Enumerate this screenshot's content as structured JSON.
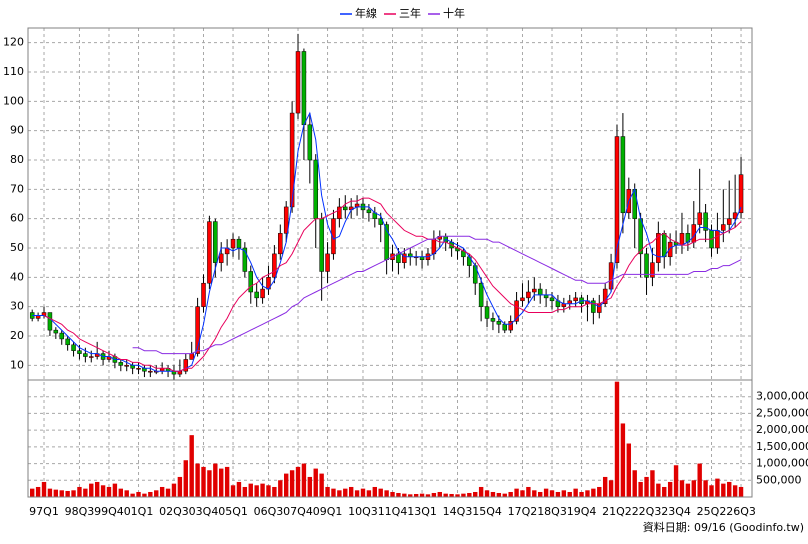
{
  "chart_data": [
    {
      "type": "candlestick",
      "categories": [
        null,
        null,
        "97Q1",
        null,
        null,
        null,
        null,
        null,
        "98Q3",
        null,
        null,
        null,
        null,
        "99Q4",
        null,
        null,
        null,
        null,
        "01Q1",
        null,
        null,
        null,
        null,
        null,
        "02Q3",
        null,
        null,
        null,
        null,
        "03Q4",
        null,
        null,
        null,
        null,
        "05Q1",
        null,
        null,
        null,
        null,
        null,
        "06Q3",
        null,
        null,
        null,
        null,
        "07Q4",
        null,
        null,
        null,
        null,
        "09Q1",
        null,
        null,
        null,
        null,
        null,
        "10Q3",
        null,
        null,
        null,
        null,
        "11Q4",
        null,
        null,
        null,
        null,
        "13Q1",
        null,
        null,
        null,
        null,
        null,
        "14Q3",
        null,
        null,
        null,
        null,
        "15Q4",
        null,
        null,
        null,
        null,
        null,
        "17Q2",
        null,
        null,
        null,
        null,
        "18Q3",
        null,
        null,
        null,
        null,
        "19Q4",
        null,
        null,
        null,
        null,
        null,
        "21Q2",
        null,
        null,
        null,
        null,
        "22Q3",
        null,
        null,
        null,
        null,
        "23Q4",
        null,
        null,
        null,
        null,
        null,
        "25Q2",
        null,
        null,
        null,
        null,
        "26Q3"
      ],
      "open": [
        28,
        26,
        27,
        28,
        22,
        21,
        19,
        17,
        15,
        14,
        13,
        13,
        14,
        12,
        13,
        11,
        10,
        10,
        9,
        9,
        8,
        8,
        8,
        9,
        8,
        7,
        8,
        12,
        14,
        30,
        38,
        59,
        45,
        48,
        50,
        53,
        50,
        42,
        35,
        33,
        36,
        40,
        48,
        55,
        64,
        96,
        117,
        92,
        80,
        60,
        42,
        48,
        60,
        64,
        63,
        64,
        65,
        63,
        62,
        60,
        58,
        46,
        48,
        45,
        48,
        47,
        47,
        46,
        48,
        53,
        54,
        52,
        50,
        49,
        47,
        44,
        38,
        30,
        26,
        25,
        24,
        22,
        25,
        32,
        33,
        35,
        36,
        34,
        33,
        32,
        30,
        31,
        32,
        33,
        31,
        32,
        28,
        31,
        36,
        45,
        88,
        62,
        70,
        60,
        48,
        40,
        45,
        55,
        47,
        52,
        51,
        55,
        52,
        58,
        62,
        56,
        50,
        56,
        58,
        60,
        62
      ],
      "high": [
        29,
        28,
        30,
        28,
        23,
        22,
        20,
        18,
        17,
        16,
        15,
        18,
        15,
        15,
        14,
        12,
        12,
        11,
        11,
        10,
        10,
        10,
        11,
        10,
        10,
        12,
        14,
        18,
        33,
        41,
        61,
        60,
        52,
        53,
        55,
        54,
        52,
        44,
        38,
        40,
        44,
        51,
        58,
        66,
        100,
        123,
        118,
        96,
        82,
        62,
        52,
        63,
        67,
        68,
        67,
        68,
        67,
        65,
        64,
        62,
        59,
        51,
        50,
        50,
        50,
        49,
        49,
        50,
        56,
        56,
        55,
        53,
        52,
        50,
        48,
        45,
        40,
        32,
        28,
        27,
        25,
        27,
        35,
        38,
        39,
        40,
        38,
        36,
        35,
        34,
        33,
        34,
        35,
        34,
        34,
        33,
        34,
        38,
        48,
        92,
        96,
        74,
        72,
        62,
        50,
        50,
        59,
        56,
        55,
        56,
        62,
        58,
        66,
        77,
        65,
        58,
        62,
        70,
        73,
        75,
        81
      ],
      "low": [
        25,
        25,
        26,
        20,
        19,
        17,
        15,
        13,
        12,
        11,
        11,
        12,
        10,
        11,
        9,
        8,
        8,
        7,
        7,
        6,
        6,
        7,
        7,
        6,
        5,
        6,
        7,
        12,
        13,
        28,
        36,
        40,
        42,
        44,
        47,
        46,
        40,
        31,
        30,
        31,
        34,
        38,
        46,
        52,
        62,
        94,
        80,
        72,
        50,
        32,
        38,
        46,
        57,
        60,
        60,
        61,
        60,
        59,
        57,
        52,
        41,
        42,
        41,
        43,
        44,
        44,
        43,
        44,
        46,
        50,
        49,
        47,
        46,
        44,
        40,
        34,
        25,
        23,
        22,
        21,
        21,
        21,
        24,
        30,
        31,
        32,
        31,
        30,
        29,
        28,
        28,
        29,
        30,
        28,
        25,
        24,
        26,
        30,
        35,
        43,
        55,
        60,
        50,
        40,
        34,
        37,
        42,
        43,
        44,
        48,
        48,
        49,
        50,
        55,
        52,
        47,
        48,
        52,
        55,
        57,
        60
      ],
      "close": [
        26,
        27,
        28,
        22,
        21,
        19,
        17,
        15,
        14,
        13,
        13,
        14,
        12,
        13,
        11,
        10,
        10,
        9,
        9,
        8,
        8,
        8,
        9,
        8,
        7,
        8,
        12,
        14,
        30,
        38,
        59,
        45,
        48,
        50,
        53,
        50,
        42,
        35,
        33,
        36,
        40,
        48,
        55,
        64,
        96,
        117,
        92,
        80,
        60,
        42,
        48,
        60,
        64,
        63,
        64,
        65,
        63,
        62,
        60,
        58,
        46,
        48,
        45,
        48,
        47,
        47,
        46,
        48,
        53,
        54,
        52,
        50,
        49,
        47,
        44,
        38,
        30,
        26,
        25,
        24,
        22,
        25,
        32,
        33,
        35,
        36,
        34,
        33,
        32,
        30,
        31,
        32,
        33,
        31,
        32,
        28,
        31,
        36,
        45,
        88,
        62,
        70,
        60,
        48,
        40,
        45,
        55,
        47,
        52,
        51,
        55,
        52,
        58,
        62,
        56,
        50,
        56,
        58,
        60,
        62,
        75
      ],
      "up_color": "#ff0000",
      "down_color": "#00b000",
      "series": [
        {
          "name": "年線",
          "color": "#0030ff",
          "values": [
            27,
            27,
            27,
            26,
            24,
            22,
            20,
            18,
            16,
            15,
            14,
            14,
            13,
            13,
            12,
            12,
            11,
            10,
            10,
            9,
            9,
            8,
            8,
            8,
            8,
            8,
            9,
            10,
            16,
            24,
            35,
            43,
            50,
            50,
            49,
            50,
            49,
            45,
            40,
            37,
            36,
            39,
            45,
            52,
            66,
            83,
            92,
            96,
            87,
            68,
            58,
            53,
            54,
            59,
            63,
            64,
            64,
            64,
            62,
            61,
            56,
            53,
            49,
            47,
            47,
            47,
            47,
            47,
            48,
            50,
            53,
            52,
            51,
            50,
            47,
            44,
            39,
            34,
            30,
            26,
            24,
            24,
            26,
            28,
            31,
            34,
            34,
            34,
            34,
            32,
            31,
            31,
            31,
            32,
            32,
            31,
            30,
            32,
            35,
            50,
            58,
            66,
            70,
            60,
            55,
            48,
            47,
            47,
            50,
            51,
            51,
            52,
            54,
            57,
            57,
            56,
            56,
            55,
            56,
            59,
            64
          ]
        },
        {
          "name": "三年",
          "color": "#e8005c",
          "values": [
            null,
            null,
            27,
            26,
            25,
            24,
            22,
            21,
            19,
            18,
            17,
            16,
            15,
            14,
            13,
            12,
            12,
            11,
            11,
            10,
            10,
            9,
            9,
            9,
            8,
            8,
            9,
            9,
            11,
            13,
            16,
            19,
            23,
            26,
            30,
            33,
            35,
            37,
            38,
            40,
            41,
            42,
            44,
            45,
            48,
            52,
            56,
            58,
            60,
            60,
            61,
            62,
            63,
            65,
            66,
            66,
            67,
            67,
            66,
            65,
            62,
            60,
            58,
            56,
            55,
            54,
            54,
            53,
            53,
            52,
            52,
            51,
            50,
            49,
            48,
            46,
            43,
            40,
            37,
            35,
            33,
            31,
            30,
            29,
            28,
            28,
            28,
            28,
            28,
            29,
            29,
            30,
            30,
            30,
            31,
            31,
            31,
            32,
            33,
            37,
            40,
            44,
            47,
            49,
            51,
            52,
            54,
            55,
            53,
            52,
            51,
            51,
            52,
            53,
            53,
            53,
            54,
            55,
            56,
            57,
            59
          ]
        },
        {
          "name": "十年",
          "color": "#8a2be2",
          "values": [
            null,
            null,
            null,
            null,
            null,
            null,
            null,
            null,
            null,
            null,
            null,
            null,
            null,
            null,
            null,
            null,
            null,
            16,
            16,
            15,
            15,
            15,
            14,
            14,
            14,
            14,
            14,
            14,
            15,
            15,
            16,
            17,
            17,
            18,
            19,
            20,
            21,
            22,
            23,
            24,
            25,
            26,
            27,
            28,
            30,
            31,
            33,
            34,
            35,
            36,
            37,
            38,
            39,
            40,
            41,
            42,
            42,
            43,
            44,
            45,
            46,
            47,
            48,
            49,
            50,
            51,
            52,
            53,
            53,
            54,
            54,
            54,
            54,
            54,
            54,
            53,
            53,
            53,
            52,
            52,
            51,
            50,
            49,
            48,
            47,
            46,
            45,
            44,
            43,
            42,
            41,
            40,
            39,
            39,
            38,
            38,
            38,
            38,
            39,
            40,
            41,
            41,
            41,
            41,
            41,
            41,
            41,
            41,
            41,
            41,
            41,
            41,
            42,
            42,
            42,
            43,
            43,
            44,
            44,
            45,
            46
          ]
        }
      ],
      "legend": "top",
      "ylim": [
        5,
        125
      ],
      "yticks": [
        10,
        20,
        30,
        40,
        50,
        60,
        70,
        80,
        90,
        100,
        110,
        120
      ],
      "grid": true
    },
    {
      "type": "bar",
      "values": [
        250000,
        300000,
        450000,
        250000,
        220000,
        200000,
        180000,
        200000,
        300000,
        250000,
        400000,
        450000,
        350000,
        300000,
        400000,
        250000,
        200000,
        100000,
        150000,
        100000,
        150000,
        200000,
        300000,
        250000,
        400000,
        600000,
        1100000,
        1850000,
        1000000,
        900000,
        800000,
        1000000,
        850000,
        900000,
        350000,
        450000,
        300000,
        400000,
        350000,
        400000,
        350000,
        300000,
        500000,
        700000,
        800000,
        900000,
        1000000,
        600000,
        850000,
        700000,
        300000,
        250000,
        200000,
        250000,
        300000,
        200000,
        250000,
        200000,
        300000,
        250000,
        200000,
        150000,
        120000,
        100000,
        80000,
        90000,
        100000,
        80000,
        120000,
        150000,
        100000,
        90000,
        80000,
        100000,
        120000,
        150000,
        300000,
        200000,
        150000,
        120000,
        100000,
        150000,
        250000,
        200000,
        300000,
        200000,
        150000,
        250000,
        200000,
        150000,
        200000,
        150000,
        250000,
        150000,
        200000,
        250000,
        300000,
        600000,
        500000,
        3450000,
        2200000,
        1600000,
        800000,
        450000,
        600000,
        800000,
        400000,
        300000,
        450000,
        950000,
        500000,
        400000,
        500000,
        1000000,
        500000,
        350000,
        550000,
        400000,
        450000,
        350000,
        300000
      ],
      "color": "#e00000",
      "ylim": [
        0,
        3500000
      ],
      "yticks": [
        {
          "value": 500000,
          "label": "500,000"
        },
        {
          "value": 1000000,
          "label": "1,000,000"
        },
        {
          "value": 1500000,
          "label": "1,500,000"
        },
        {
          "value": 2000000,
          "label": "2,000,000"
        },
        {
          "value": 2500000,
          "label": "2,500,000"
        },
        {
          "value": 3000000,
          "label": "3,000,000"
        }
      ],
      "grid": true
    }
  ],
  "footer": "資料日期: 09/16 (Goodinfo.tw)"
}
